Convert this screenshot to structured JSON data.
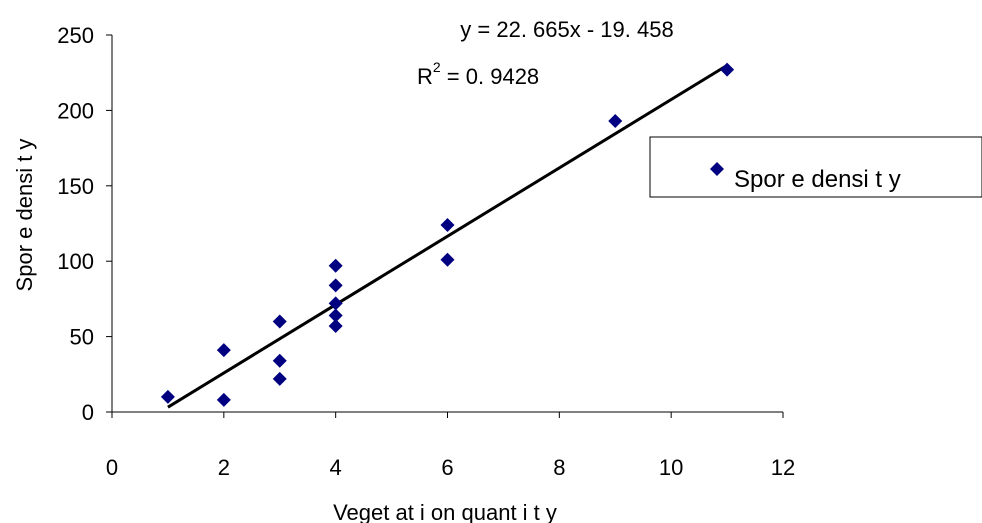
{
  "chart_data": {
    "type": "scatter",
    "xlabel": "Veget at i on quant i t y",
    "ylabel": "Spor e densi t y",
    "xlim": [
      0,
      12
    ],
    "ylim": [
      0,
      250
    ],
    "xticks": [
      "0",
      "2",
      "4",
      "6",
      "8",
      "10",
      "12"
    ],
    "yticks": [
      "0",
      "50",
      "100",
      "150",
      "200",
      "250"
    ],
    "grid": false,
    "legend_position": "right",
    "series": [
      {
        "name": "Spor e densi t y",
        "color": "#000080",
        "marker": "diamond",
        "points": [
          {
            "x": 1,
            "y": 10
          },
          {
            "x": 2,
            "y": 41
          },
          {
            "x": 2,
            "y": 8
          },
          {
            "x": 3,
            "y": 60
          },
          {
            "x": 3,
            "y": 34
          },
          {
            "x": 3,
            "y": 22
          },
          {
            "x": 4,
            "y": 97
          },
          {
            "x": 4,
            "y": 84
          },
          {
            "x": 4,
            "y": 72
          },
          {
            "x": 4,
            "y": 64
          },
          {
            "x": 4,
            "y": 57
          },
          {
            "x": 6,
            "y": 124
          },
          {
            "x": 6,
            "y": 101
          },
          {
            "x": 9,
            "y": 193
          },
          {
            "x": 11,
            "y": 227
          }
        ]
      }
    ],
    "trendline": {
      "type": "linear",
      "slope": 22.665,
      "intercept": -19.458,
      "x_range": [
        1,
        11
      ],
      "color": "#000000"
    },
    "annotations": {
      "equation": "y = 22. 665x - 19. 458",
      "r2_prefix": "R",
      "r2_sup": "2",
      "r2_value": " = 0. 9428"
    }
  }
}
